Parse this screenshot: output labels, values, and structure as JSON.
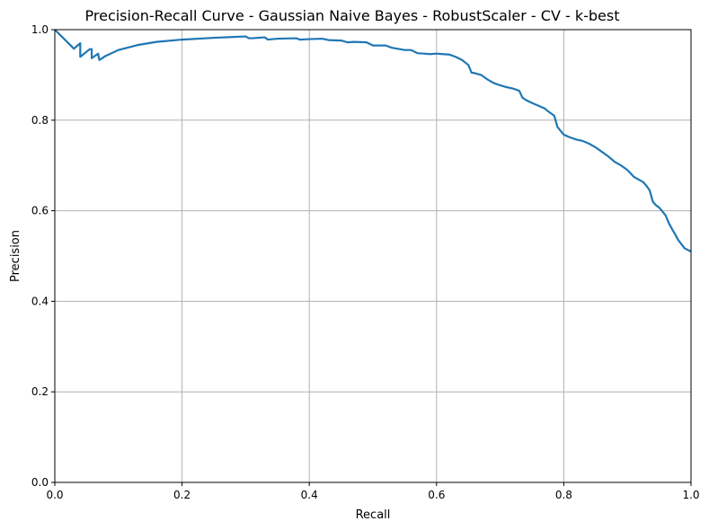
{
  "chart_data": {
    "type": "line",
    "title": "Precision-Recall Curve - Gaussian Naive Bayes - RobustScaler - CV - k-best",
    "xlabel": "Recall",
    "ylabel": "Precision",
    "xlim": [
      0,
      1
    ],
    "ylim": [
      0,
      1
    ],
    "xticks": [
      0,
      0.2,
      0.4,
      0.6,
      0.8,
      1
    ],
    "yticks": [
      0,
      0.2,
      0.4,
      0.6,
      0.8,
      1
    ],
    "xtick_labels": [
      "0.0",
      "0.2",
      "0.4",
      "0.6",
      "0.8",
      "1.0"
    ],
    "ytick_labels": [
      "0.0",
      "0.2",
      "0.4",
      "0.6",
      "0.8",
      "1.0"
    ],
    "grid": true,
    "legend": "none",
    "series": [
      {
        "color": "#1f77b4",
        "x": [
          0.0,
          0.03,
          0.04,
          0.04,
          0.055,
          0.058,
          0.058,
          0.068,
          0.068,
          0.07,
          0.08,
          0.1,
          0.13,
          0.16,
          0.2,
          0.25,
          0.3,
          0.305,
          0.31,
          0.33,
          0.335,
          0.35,
          0.38,
          0.385,
          0.4,
          0.42,
          0.43,
          0.45,
          0.46,
          0.47,
          0.49,
          0.5,
          0.52,
          0.53,
          0.55,
          0.56,
          0.57,
          0.58,
          0.59,
          0.6,
          0.61,
          0.62,
          0.63,
          0.64,
          0.65,
          0.655,
          0.66,
          0.67,
          0.68,
          0.69,
          0.7,
          0.71,
          0.72,
          0.73,
          0.735,
          0.74,
          0.75,
          0.76,
          0.77,
          0.775,
          0.78,
          0.785,
          0.79,
          0.8,
          0.81,
          0.82,
          0.83,
          0.84,
          0.85,
          0.86,
          0.87,
          0.88,
          0.89,
          0.9,
          0.91,
          0.92,
          0.925,
          0.93,
          0.935,
          0.94,
          0.945,
          0.95,
          0.96,
          0.965,
          0.97,
          0.975,
          0.98,
          0.99,
          1.0
        ],
        "y": [
          1.0,
          0.958,
          0.97,
          0.94,
          0.957,
          0.957,
          0.937,
          0.947,
          0.947,
          0.933,
          0.942,
          0.955,
          0.966,
          0.973,
          0.978,
          0.982,
          0.985,
          0.981,
          0.981,
          0.983,
          0.978,
          0.98,
          0.981,
          0.978,
          0.979,
          0.98,
          0.977,
          0.976,
          0.972,
          0.973,
          0.972,
          0.965,
          0.965,
          0.96,
          0.955,
          0.955,
          0.948,
          0.947,
          0.946,
          0.947,
          0.946,
          0.945,
          0.94,
          0.933,
          0.922,
          0.905,
          0.904,
          0.9,
          0.89,
          0.882,
          0.877,
          0.873,
          0.87,
          0.865,
          0.85,
          0.845,
          0.838,
          0.832,
          0.826,
          0.82,
          0.815,
          0.81,
          0.785,
          0.768,
          0.762,
          0.757,
          0.754,
          0.748,
          0.74,
          0.73,
          0.72,
          0.708,
          0.7,
          0.69,
          0.675,
          0.667,
          0.663,
          0.655,
          0.645,
          0.62,
          0.612,
          0.607,
          0.59,
          0.573,
          0.56,
          0.548,
          0.535,
          0.517,
          0.51
        ]
      }
    ]
  }
}
